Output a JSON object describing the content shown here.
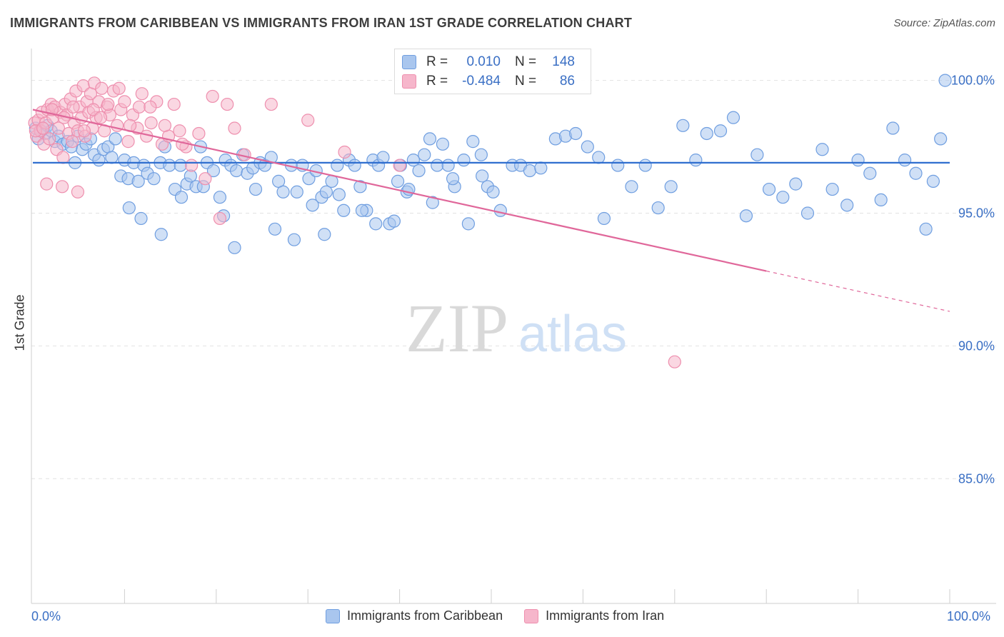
{
  "header": {
    "title": "IMMIGRANTS FROM CARIBBEAN VS IMMIGRANTS FROM IRAN 1ST GRADE CORRELATION CHART",
    "source": "Source: ZipAtlas.com"
  },
  "watermark": {
    "zip": "ZIP",
    "atlas": "atlas"
  },
  "colors": {
    "caribbean_fill": "#a9c6ee",
    "caribbean_stroke": "#6f9ee0",
    "caribbean_line": "#2f6ecf",
    "iran_fill": "#f6b6cb",
    "iran_stroke": "#ee8fae",
    "iran_line": "#e0679a",
    "tick_text": "#3a6fc4",
    "grid": "#e2e2e2"
  },
  "legend_top": [
    {
      "r_label": "R =",
      "r_value": "0.010",
      "n_label": "N =",
      "n_value": "148"
    },
    {
      "r_label": "R =",
      "r_value": "-0.484",
      "n_label": "N =",
      "n_value": "86"
    }
  ],
  "legend_bottom": [
    "Immigrants from Caribbean",
    "Immigrants from Iran"
  ],
  "chart_data": {
    "type": "scatter",
    "title": "IMMIGRANTS FROM CARIBBEAN VS IMMIGRANTS FROM IRAN 1ST GRADE CORRELATION CHART",
    "xlabel": "",
    "ylabel": "1st Grade",
    "xlim": [
      0,
      100
    ],
    "ylim": [
      80.3,
      101.2
    ],
    "x_tick_labels": [
      "0.0%",
      "100.0%"
    ],
    "y_ticks": [
      85,
      90,
      95,
      100
    ],
    "y_tick_labels": [
      "85.0%",
      "90.0%",
      "95.0%",
      "100.0%"
    ],
    "series": [
      {
        "name": "Immigrants from Caribbean",
        "r": 0.01,
        "n": 148,
        "trend": {
          "x": [
            0,
            100
          ],
          "y": [
            96.9,
            96.9
          ],
          "solid_to": 100
        },
        "points": [
          [
            0.3,
            98.2
          ],
          [
            0.6,
            97.8
          ],
          [
            0.9,
            98.1
          ],
          [
            1.3,
            98.0
          ],
          [
            1.6,
            98.3
          ],
          [
            2.0,
            98.1
          ],
          [
            2.4,
            97.7
          ],
          [
            2.8,
            97.9
          ],
          [
            3.3,
            97.6
          ],
          [
            3.8,
            97.7
          ],
          [
            4.2,
            97.5
          ],
          [
            4.6,
            96.9
          ],
          [
            4.9,
            97.9
          ],
          [
            5.4,
            97.4
          ],
          [
            5.8,
            97.6
          ],
          [
            6.3,
            97.8
          ],
          [
            6.7,
            97.2
          ],
          [
            7.2,
            97.0
          ],
          [
            7.7,
            97.4
          ],
          [
            8.2,
            97.5
          ],
          [
            8.6,
            97.1
          ],
          [
            9.0,
            97.8
          ],
          [
            9.6,
            96.4
          ],
          [
            10.0,
            97.0
          ],
          [
            10.4,
            96.3
          ],
          [
            11.0,
            96.9
          ],
          [
            11.5,
            96.2
          ],
          [
            12.1,
            96.8
          ],
          [
            12.5,
            96.5
          ],
          [
            13.2,
            96.3
          ],
          [
            13.9,
            96.9
          ],
          [
            14.4,
            97.5
          ],
          [
            14.9,
            96.8
          ],
          [
            15.5,
            95.9
          ],
          [
            16.1,
            96.8
          ],
          [
            16.8,
            96.1
          ],
          [
            17.2,
            96.4
          ],
          [
            17.8,
            96.0
          ],
          [
            18.3,
            97.5
          ],
          [
            19.0,
            96.9
          ],
          [
            19.7,
            96.6
          ],
          [
            20.4,
            95.6
          ],
          [
            21.0,
            97.0
          ],
          [
            21.6,
            96.8
          ],
          [
            22.2,
            96.6
          ],
          [
            22.9,
            97.2
          ],
          [
            23.4,
            96.5
          ],
          [
            24.0,
            96.7
          ],
          [
            24.8,
            96.9
          ],
          [
            25.3,
            96.8
          ],
          [
            26.0,
            97.1
          ],
          [
            26.8,
            96.2
          ],
          [
            27.3,
            95.8
          ],
          [
            28.2,
            96.8
          ],
          [
            28.8,
            95.8
          ],
          [
            29.4,
            96.8
          ],
          [
            30.1,
            96.3
          ],
          [
            30.9,
            96.6
          ],
          [
            31.5,
            95.6
          ],
          [
            32.0,
            95.8
          ],
          [
            32.6,
            96.2
          ],
          [
            33.2,
            96.8
          ],
          [
            33.9,
            95.1
          ],
          [
            34.5,
            97.0
          ],
          [
            35.1,
            96.8
          ],
          [
            35.7,
            96.0
          ],
          [
            36.4,
            95.1
          ],
          [
            37.1,
            97.0
          ],
          [
            37.7,
            96.8
          ],
          [
            38.2,
            97.1
          ],
          [
            38.9,
            94.6
          ],
          [
            39.4,
            94.7
          ],
          [
            40.1,
            96.8
          ],
          [
            40.8,
            95.8
          ],
          [
            41.5,
            97.0
          ],
          [
            42.1,
            96.6
          ],
          [
            42.7,
            97.2
          ],
          [
            43.3,
            97.8
          ],
          [
            44.1,
            96.8
          ],
          [
            44.7,
            97.6
          ],
          [
            45.3,
            96.8
          ],
          [
            46.0,
            96.0
          ],
          [
            47.0,
            97.0
          ],
          [
            48.0,
            97.7
          ],
          [
            48.9,
            97.2
          ],
          [
            49.6,
            96.0
          ],
          [
            50.2,
            95.8
          ],
          [
            51.0,
            95.1
          ],
          [
            52.3,
            96.8
          ],
          [
            53.2,
            96.8
          ],
          [
            54.2,
            96.6
          ],
          [
            55.4,
            96.7
          ],
          [
            57.0,
            97.8
          ],
          [
            58.1,
            97.9
          ],
          [
            59.2,
            98.0
          ],
          [
            60.5,
            97.5
          ],
          [
            61.7,
            97.1
          ],
          [
            62.3,
            94.8
          ],
          [
            63.8,
            96.8
          ],
          [
            65.3,
            96.0
          ],
          [
            66.8,
            96.8
          ],
          [
            68.2,
            95.2
          ],
          [
            69.6,
            96.0
          ],
          [
            70.9,
            98.3
          ],
          [
            72.3,
            97.0
          ],
          [
            73.5,
            98.0
          ],
          [
            75.0,
            98.1
          ],
          [
            76.4,
            98.6
          ],
          [
            77.8,
            94.9
          ],
          [
            79.0,
            97.2
          ],
          [
            80.3,
            95.9
          ],
          [
            81.8,
            95.6
          ],
          [
            83.2,
            96.1
          ],
          [
            84.5,
            95.0
          ],
          [
            86.1,
            97.4
          ],
          [
            87.2,
            95.9
          ],
          [
            88.8,
            95.3
          ],
          [
            90.0,
            97.0
          ],
          [
            91.3,
            96.5
          ],
          [
            92.5,
            95.5
          ],
          [
            93.8,
            98.2
          ],
          [
            95.1,
            97.0
          ],
          [
            96.3,
            96.5
          ],
          [
            97.4,
            94.4
          ],
          [
            98.2,
            96.2
          ],
          [
            99.0,
            97.8
          ],
          [
            99.5,
            100.0
          ],
          [
            10.5,
            95.2
          ],
          [
            11.8,
            94.8
          ],
          [
            14.0,
            94.2
          ],
          [
            16.2,
            95.6
          ],
          [
            18.6,
            96.0
          ],
          [
            20.8,
            94.9
          ],
          [
            22.0,
            93.7
          ],
          [
            24.3,
            95.9
          ],
          [
            26.4,
            94.4
          ],
          [
            28.5,
            94.0
          ],
          [
            30.5,
            95.3
          ],
          [
            31.8,
            94.2
          ],
          [
            33.4,
            95.7
          ],
          [
            35.9,
            95.1
          ],
          [
            37.4,
            94.6
          ],
          [
            39.8,
            96.2
          ],
          [
            41.0,
            95.9
          ],
          [
            43.6,
            95.4
          ],
          [
            45.8,
            96.3
          ],
          [
            47.5,
            94.6
          ],
          [
            49.0,
            96.4
          ]
        ]
      },
      {
        "name": "Immigrants from Iran",
        "r": -0.484,
        "n": 86,
        "trend": {
          "x": [
            0,
            100
          ],
          "y": [
            98.9,
            91.3
          ],
          "solid_to": 80
        },
        "points": [
          [
            0.2,
            98.4
          ],
          [
            0.4,
            97.9
          ],
          [
            0.6,
            98.5
          ],
          [
            0.8,
            98.1
          ],
          [
            1.0,
            98.8
          ],
          [
            1.2,
            97.6
          ],
          [
            1.4,
            98.4
          ],
          [
            1.6,
            98.9
          ],
          [
            1.8,
            97.8
          ],
          [
            2.0,
            99.1
          ],
          [
            2.2,
            98.6
          ],
          [
            2.4,
            99.0
          ],
          [
            2.6,
            97.4
          ],
          [
            2.8,
            98.2
          ],
          [
            3.0,
            98.8
          ],
          [
            3.3,
            97.1
          ],
          [
            3.5,
            99.1
          ],
          [
            3.7,
            98.7
          ],
          [
            3.9,
            98.0
          ],
          [
            4.1,
            99.3
          ],
          [
            4.3,
            97.7
          ],
          [
            4.5,
            98.4
          ],
          [
            4.7,
            99.6
          ],
          [
            4.9,
            98.1
          ],
          [
            5.1,
            99.0
          ],
          [
            5.3,
            98.6
          ],
          [
            5.5,
            99.8
          ],
          [
            5.7,
            97.9
          ],
          [
            5.9,
            99.2
          ],
          [
            6.1,
            98.8
          ],
          [
            6.3,
            99.5
          ],
          [
            6.5,
            98.2
          ],
          [
            6.7,
            99.9
          ],
          [
            6.9,
            98.6
          ],
          [
            7.2,
            99.2
          ],
          [
            7.5,
            99.7
          ],
          [
            7.8,
            98.1
          ],
          [
            8.1,
            99.0
          ],
          [
            8.4,
            98.7
          ],
          [
            8.8,
            99.6
          ],
          [
            9.2,
            98.3
          ],
          [
            9.6,
            98.9
          ],
          [
            10.0,
            99.2
          ],
          [
            10.4,
            97.7
          ],
          [
            10.9,
            98.7
          ],
          [
            11.4,
            98.2
          ],
          [
            11.9,
            99.5
          ],
          [
            12.4,
            97.9
          ],
          [
            12.9,
            98.4
          ],
          [
            13.5,
            99.2
          ],
          [
            14.1,
            97.6
          ],
          [
            14.8,
            97.9
          ],
          [
            15.4,
            99.1
          ],
          [
            16.0,
            98.1
          ],
          [
            16.7,
            97.5
          ],
          [
            17.3,
            96.8
          ],
          [
            18.1,
            98.0
          ],
          [
            18.8,
            96.3
          ],
          [
            19.6,
            99.4
          ],
          [
            20.4,
            94.8
          ],
          [
            21.2,
            99.1
          ],
          [
            22.0,
            98.2
          ],
          [
            23.1,
            97.2
          ],
          [
            26.0,
            99.1
          ],
          [
            30.0,
            98.5
          ],
          [
            34.0,
            97.3
          ],
          [
            40.0,
            96.8
          ],
          [
            70.0,
            89.4
          ],
          [
            4.9,
            95.8
          ],
          [
            1.5,
            96.1
          ],
          [
            3.2,
            96.0
          ],
          [
            0.3,
            98.1
          ],
          [
            1.1,
            98.2
          ],
          [
            2.1,
            98.9
          ],
          [
            3.4,
            98.6
          ],
          [
            4.4,
            99.0
          ],
          [
            5.6,
            98.1
          ],
          [
            6.6,
            98.9
          ],
          [
            7.4,
            98.6
          ],
          [
            8.2,
            99.1
          ],
          [
            9.4,
            99.7
          ],
          [
            10.6,
            98.3
          ],
          [
            11.6,
            99.0
          ],
          [
            12.8,
            99.0
          ],
          [
            14.4,
            98.3
          ],
          [
            16.3,
            97.6
          ]
        ]
      }
    ]
  }
}
